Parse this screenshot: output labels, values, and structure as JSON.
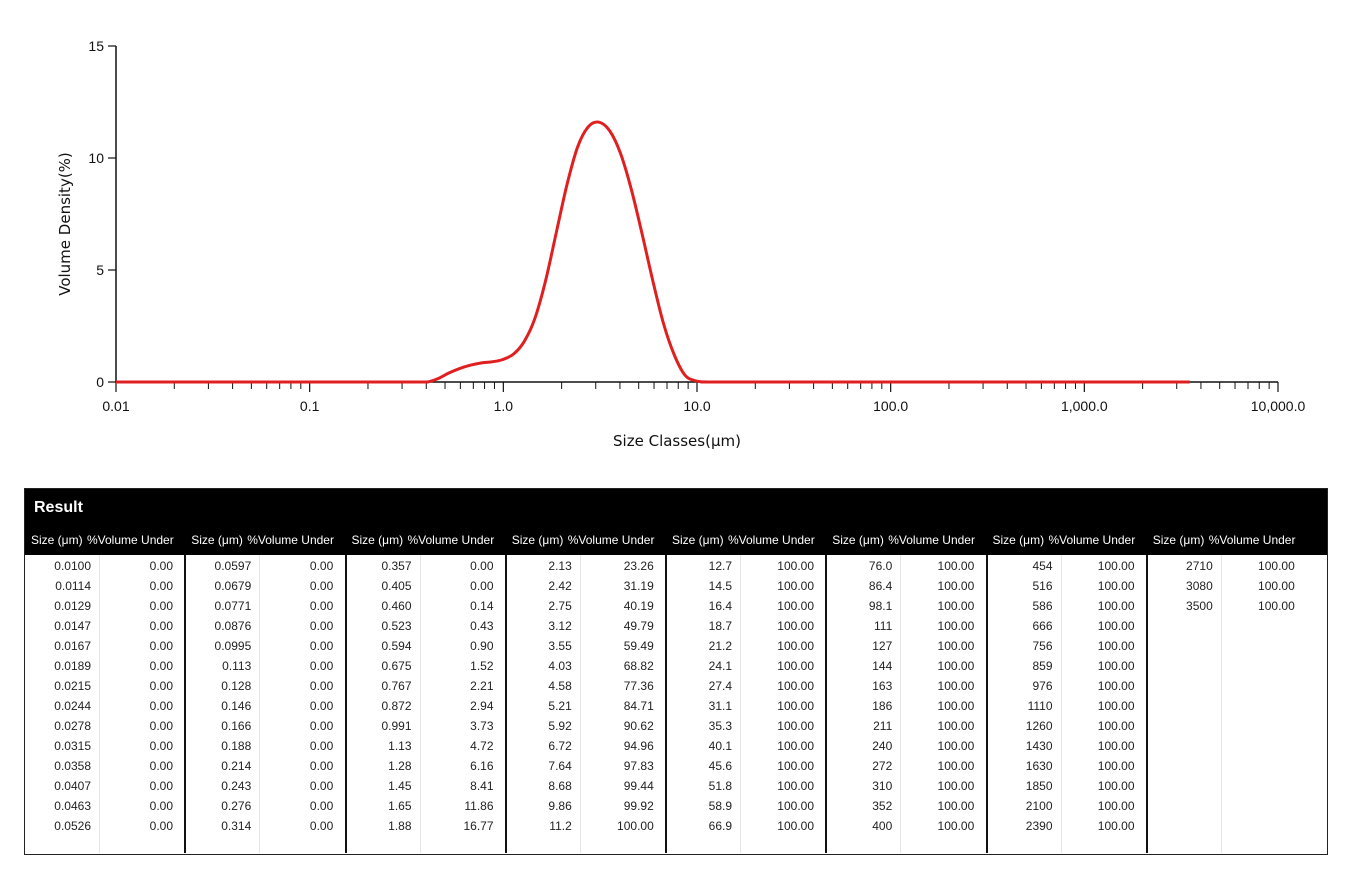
{
  "chart_data": {
    "type": "line",
    "xscale": "log",
    "xlim": [
      0.01,
      10000
    ],
    "ylim": [
      0,
      15
    ],
    "xlabel": "Size Classes(μm)",
    "ylabel": "Volume Density(%)",
    "x_tick_labels": [
      "0.01",
      "0.1",
      "1.0",
      "10.0",
      "100.0",
      "1,000.0",
      "10,000.0"
    ],
    "y_tick_labels": [
      "0",
      "5",
      "10",
      "15"
    ],
    "line_color": "#e02020",
    "series": [
      {
        "x": [
          0.01,
          0.1,
          0.357,
          0.405,
          0.46,
          0.523,
          0.594,
          0.675,
          0.767,
          0.872,
          0.991,
          1.13,
          1.28,
          1.45,
          1.65,
          1.88,
          2.13,
          2.42,
          2.75,
          3.12,
          3.55,
          4.03,
          4.58,
          5.21,
          5.92,
          6.72,
          7.64,
          8.68,
          9.86,
          11.2,
          12.7,
          100,
          1000,
          3500
        ],
        "y": [
          0,
          0,
          0,
          0,
          0.15,
          0.4,
          0.6,
          0.75,
          0.85,
          0.9,
          1.0,
          1.25,
          1.8,
          2.8,
          4.5,
          6.7,
          8.8,
          10.5,
          11.4,
          11.6,
          11.2,
          10.2,
          8.6,
          6.6,
          4.5,
          2.6,
          1.2,
          0.3,
          0.05,
          0,
          0,
          0,
          0,
          0
        ]
      }
    ]
  },
  "table": {
    "title": "Result",
    "size_header": "Size (μm)",
    "volume_header": "%Volume Under",
    "groups": [
      {
        "size": [
          "0.0100",
          "0.0114",
          "0.0129",
          "0.0147",
          "0.0167",
          "0.0189",
          "0.0215",
          "0.0244",
          "0.0278",
          "0.0315",
          "0.0358",
          "0.0407",
          "0.0463",
          "0.0526"
        ],
        "vol": [
          "0.00",
          "0.00",
          "0.00",
          "0.00",
          "0.00",
          "0.00",
          "0.00",
          "0.00",
          "0.00",
          "0.00",
          "0.00",
          "0.00",
          "0.00",
          "0.00"
        ]
      },
      {
        "size": [
          "0.0597",
          "0.0679",
          "0.0771",
          "0.0876",
          "0.0995",
          "0.113",
          "0.128",
          "0.146",
          "0.166",
          "0.188",
          "0.214",
          "0.243",
          "0.276",
          "0.314"
        ],
        "vol": [
          "0.00",
          "0.00",
          "0.00",
          "0.00",
          "0.00",
          "0.00",
          "0.00",
          "0.00",
          "0.00",
          "0.00",
          "0.00",
          "0.00",
          "0.00",
          "0.00"
        ]
      },
      {
        "size": [
          "0.357",
          "0.405",
          "0.460",
          "0.523",
          "0.594",
          "0.675",
          "0.767",
          "0.872",
          "0.991",
          "1.13",
          "1.28",
          "1.45",
          "1.65",
          "1.88"
        ],
        "vol": [
          "0.00",
          "0.00",
          "0.14",
          "0.43",
          "0.90",
          "1.52",
          "2.21",
          "2.94",
          "3.73",
          "4.72",
          "6.16",
          "8.41",
          "11.86",
          "16.77"
        ]
      },
      {
        "size": [
          "2.13",
          "2.42",
          "2.75",
          "3.12",
          "3.55",
          "4.03",
          "4.58",
          "5.21",
          "5.92",
          "6.72",
          "7.64",
          "8.68",
          "9.86",
          "11.2"
        ],
        "vol": [
          "23.26",
          "31.19",
          "40.19",
          "49.79",
          "59.49",
          "68.82",
          "77.36",
          "84.71",
          "90.62",
          "94.96",
          "97.83",
          "99.44",
          "99.92",
          "100.00"
        ]
      },
      {
        "size": [
          "12.7",
          "14.5",
          "16.4",
          "18.7",
          "21.2",
          "24.1",
          "27.4",
          "31.1",
          "35.3",
          "40.1",
          "45.6",
          "51.8",
          "58.9",
          "66.9"
        ],
        "vol": [
          "100.00",
          "100.00",
          "100.00",
          "100.00",
          "100.00",
          "100.00",
          "100.00",
          "100.00",
          "100.00",
          "100.00",
          "100.00",
          "100.00",
          "100.00",
          "100.00"
        ]
      },
      {
        "size": [
          "76.0",
          "86.4",
          "98.1",
          "111",
          "127",
          "144",
          "163",
          "186",
          "211",
          "240",
          "272",
          "310",
          "352",
          "400"
        ],
        "vol": [
          "100.00",
          "100.00",
          "100.00",
          "100.00",
          "100.00",
          "100.00",
          "100.00",
          "100.00",
          "100.00",
          "100.00",
          "100.00",
          "100.00",
          "100.00",
          "100.00"
        ]
      },
      {
        "size": [
          "454",
          "516",
          "586",
          "666",
          "756",
          "859",
          "976",
          "1110",
          "1260",
          "1430",
          "1630",
          "1850",
          "2100",
          "2390"
        ],
        "vol": [
          "100.00",
          "100.00",
          "100.00",
          "100.00",
          "100.00",
          "100.00",
          "100.00",
          "100.00",
          "100.00",
          "100.00",
          "100.00",
          "100.00",
          "100.00",
          "100.00"
        ]
      },
      {
        "size": [
          "2710",
          "3080",
          "3500"
        ],
        "vol": [
          "100.00",
          "100.00",
          "100.00"
        ]
      }
    ]
  }
}
